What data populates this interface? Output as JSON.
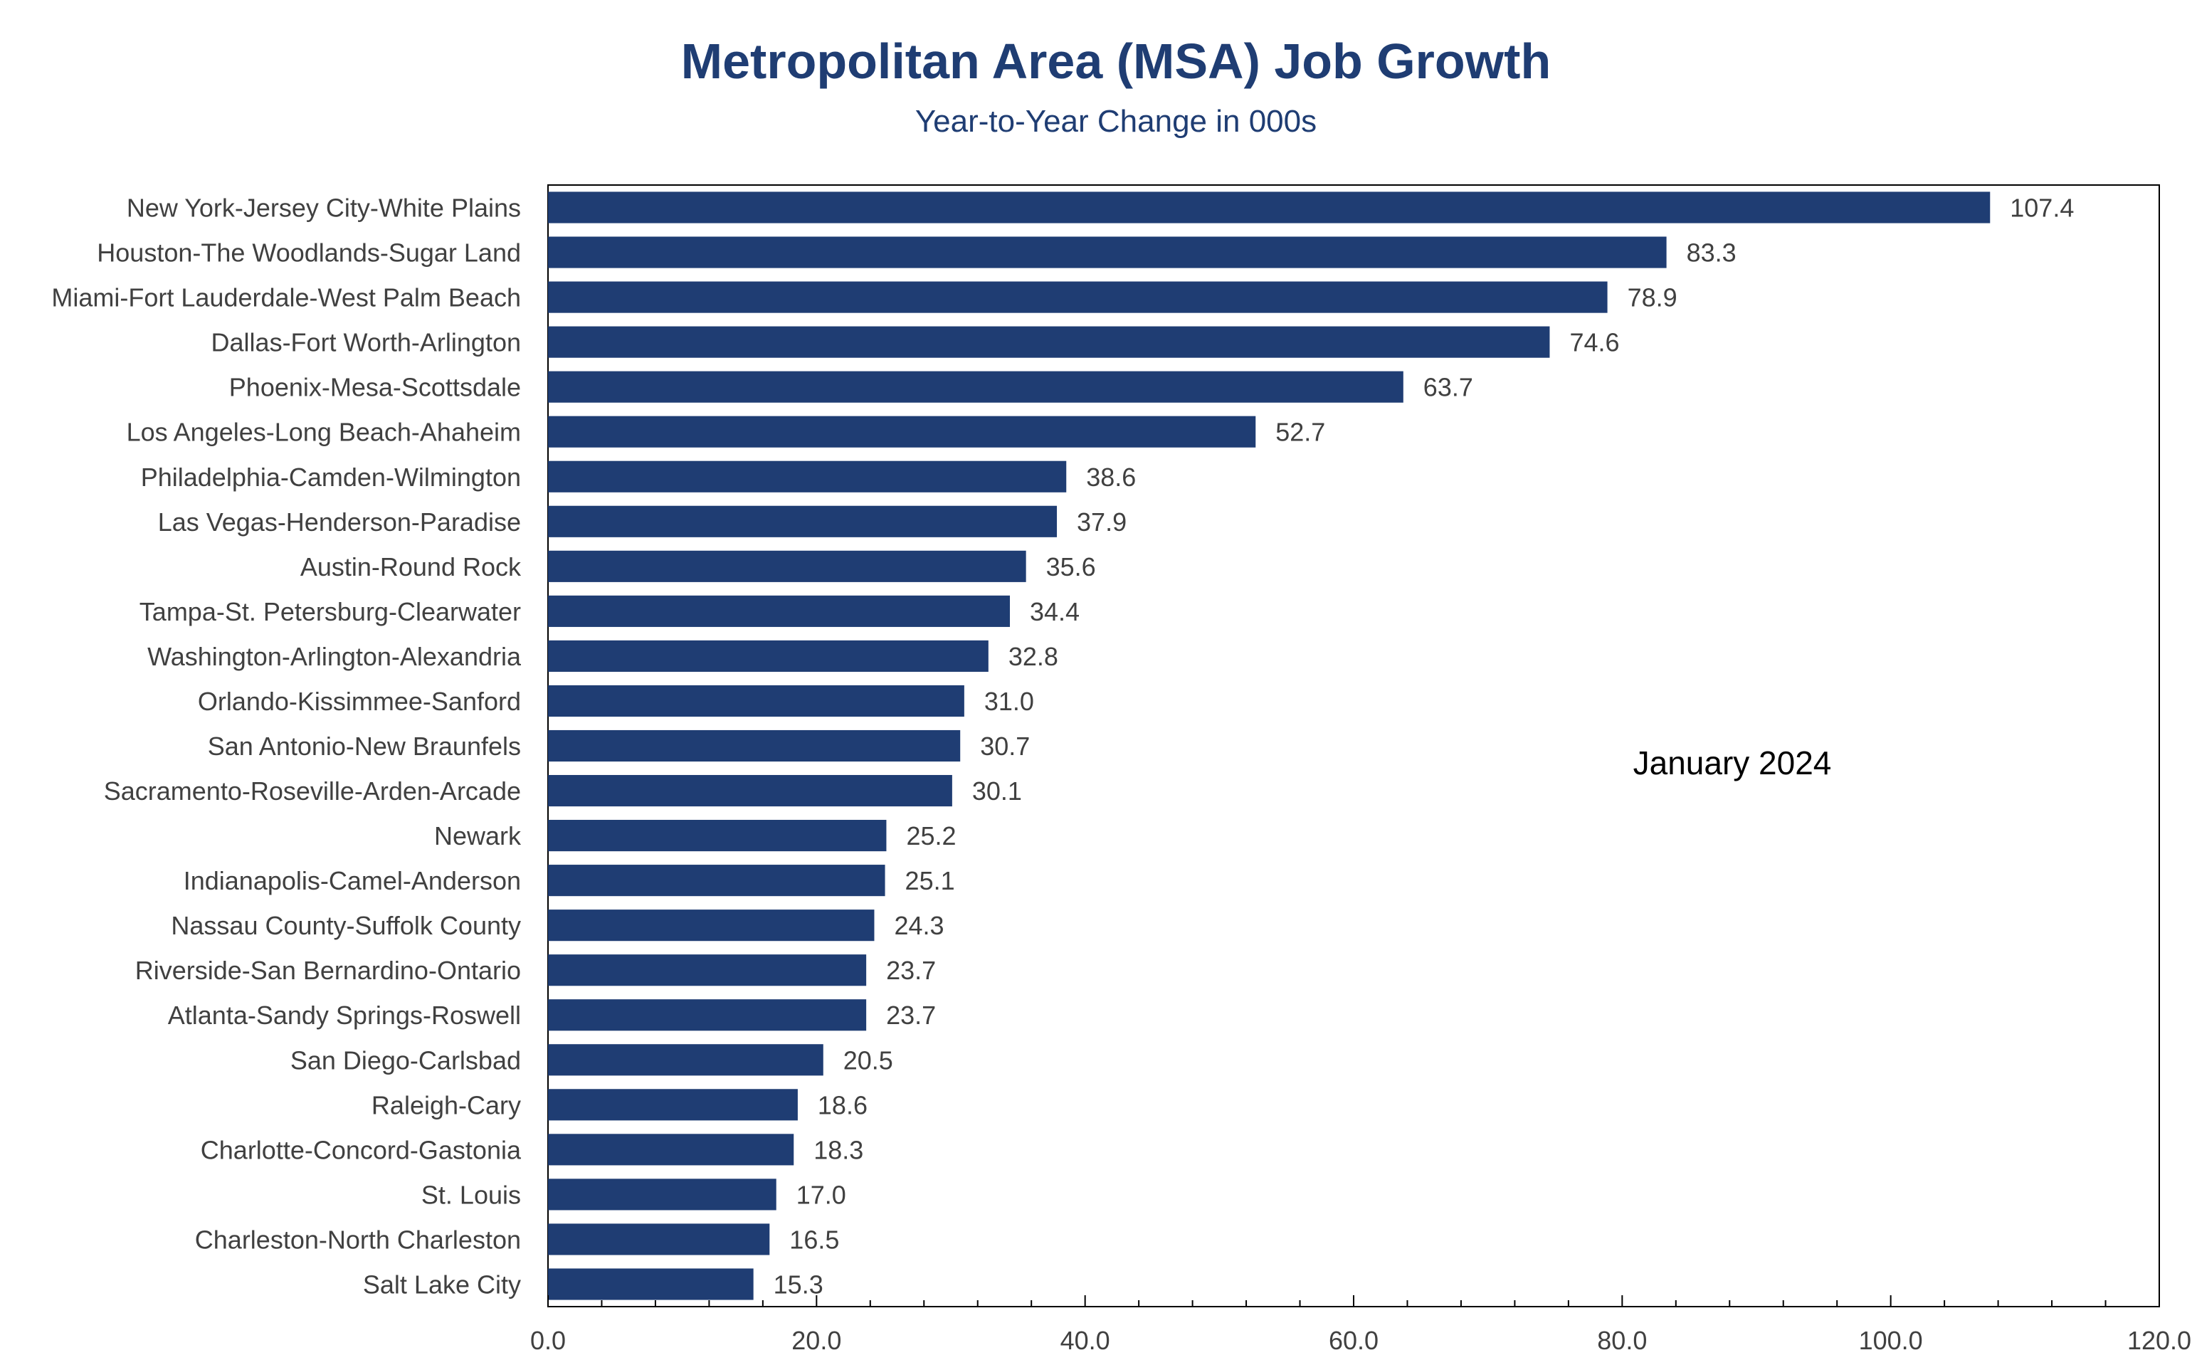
{
  "chart_data": {
    "type": "bar",
    "orientation": "horizontal",
    "title": "Metropolitan Area (MSA) Job Growth",
    "subtitle": "Year-to-Year Change in 000s",
    "annotation": "January 2024",
    "categories": [
      "New York-Jersey City-White Plains",
      "Houston-The Woodlands-Sugar Land",
      "Miami-Fort Lauderdale-West Palm Beach",
      "Dallas-Fort Worth-Arlington",
      "Phoenix-Mesa-Scottsdale",
      "Los Angeles-Long Beach-Ahaheim",
      "Philadelphia-Camden-Wilmington",
      "Las Vegas-Henderson-Paradise",
      "Austin-Round Rock",
      "Tampa-St. Petersburg-Clearwater",
      "Washington-Arlington-Alexandria",
      "Orlando-Kissimmee-Sanford",
      "San Antonio-New Braunfels",
      "Sacramento-Roseville-Arden-Arcade",
      "Newark",
      "Indianapolis-Camel-Anderson",
      "Nassau County-Suffolk County",
      "Riverside-San Bernardino-Ontario",
      "Atlanta-Sandy Springs-Roswell",
      "San Diego-Carlsbad",
      "Raleigh-Cary",
      "Charlotte-Concord-Gastonia",
      "St. Louis",
      "Charleston-North Charleston",
      "Salt Lake City"
    ],
    "values": [
      107.4,
      83.3,
      78.9,
      74.6,
      63.7,
      52.7,
      38.6,
      37.9,
      35.6,
      34.4,
      32.8,
      31.0,
      30.7,
      30.1,
      25.2,
      25.1,
      24.3,
      23.7,
      23.7,
      20.5,
      18.6,
      18.3,
      17.0,
      16.5,
      15.3
    ],
    "value_labels": [
      "107.4",
      "83.3",
      "78.9",
      "74.6",
      "63.7",
      "52.7",
      "38.6",
      "37.9",
      "35.6",
      "34.4",
      "32.8",
      "31.0",
      "30.7",
      "30.1",
      "25.2",
      "25.1",
      "24.3",
      "23.7",
      "23.7",
      "20.5",
      "18.6",
      "18.3",
      "17.0",
      "16.5",
      "15.3"
    ],
    "xlim": [
      0,
      120
    ],
    "x_ticks": [
      0,
      20,
      40,
      60,
      80,
      100,
      120
    ],
    "x_tick_labels": [
      "0.0",
      "20.0",
      "40.0",
      "60.0",
      "80.0",
      "100.0",
      "120.0"
    ],
    "x_minor_step": 4,
    "grid": false,
    "legend": "none",
    "bar_color": "#1f3d73",
    "title_color": "#1f3d73",
    "text_color": "#404040"
  }
}
